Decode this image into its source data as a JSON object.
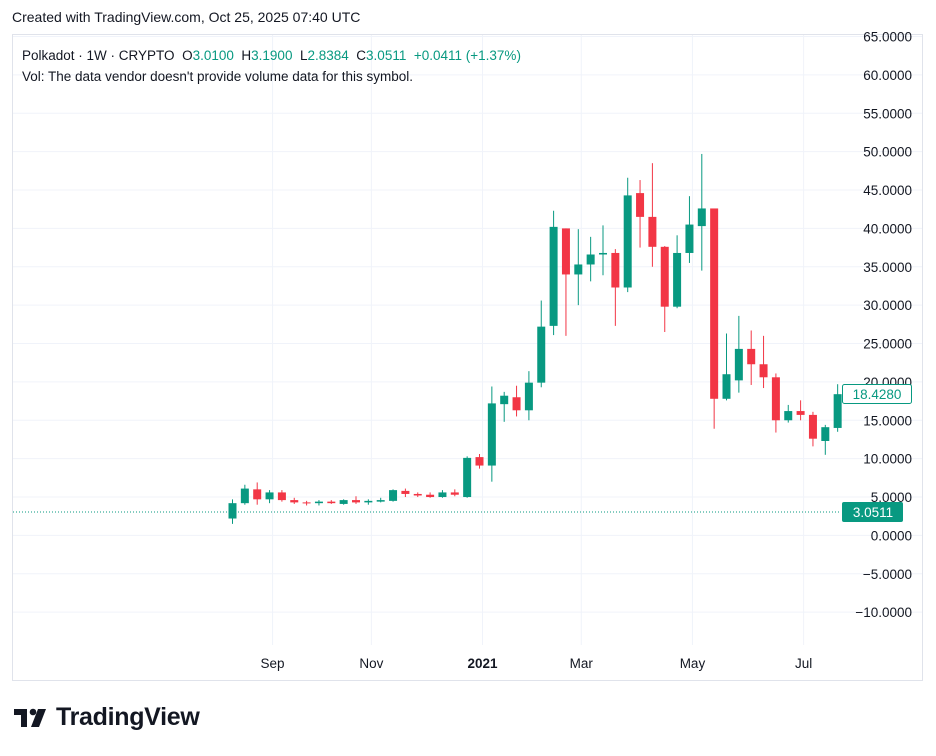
{
  "header": {
    "text": "Created with TradingView.com, Oct 25, 2025 07:40 UTC"
  },
  "legend": {
    "symbol": "Polkadot · 1W · CRYPTO",
    "o_label": "O",
    "o_value": "3.0100",
    "h_label": "H",
    "h_value": "3.1900",
    "l_label": "L",
    "l_value": "2.8384",
    "c_label": "C",
    "c_value": "3.0511",
    "change": "+0.0411 (+1.37%)",
    "volume_note": "Vol: The data vendor doesn't provide volume data for this symbol."
  },
  "logo": {
    "text": "TradingView"
  },
  "colors": {
    "up": "#089981",
    "down": "#f23645",
    "grid": "#f0f3fa",
    "text": "#131722"
  },
  "chart_data": {
    "type": "candlestick",
    "title": "Polkadot · 1W · CRYPTO",
    "ylim": [
      -13.5,
      65
    ],
    "y_ticks": [
      "65.0000",
      "60.0000",
      "55.0000",
      "50.0000",
      "45.0000",
      "40.0000",
      "35.0000",
      "30.0000",
      "25.0000",
      "20.0000",
      "15.0000",
      "10.0000",
      "5.0000",
      "0.0000",
      "−5.0000",
      "−10.0000"
    ],
    "y_tick_values": [
      65,
      60,
      55,
      50,
      45,
      40,
      35,
      30,
      25,
      20,
      15,
      10,
      5,
      0,
      -5,
      -10
    ],
    "x_labels": [
      {
        "label": "Sep",
        "index": 3,
        "bold": false
      },
      {
        "label": "Nov",
        "index": 11,
        "bold": false
      },
      {
        "label": "2021",
        "index": 20,
        "bold": true
      },
      {
        "label": "Mar",
        "index": 28,
        "bold": false
      },
      {
        "label": "May",
        "index": 37,
        "bold": false
      },
      {
        "label": "Jul",
        "index": 46,
        "bold": false
      }
    ],
    "price_labels": [
      {
        "value": 18.428,
        "text": "18.4280",
        "style": "outline"
      },
      {
        "value": 3.0511,
        "text": "3.0511",
        "style": "filled"
      }
    ],
    "current_price_line": 3.0511,
    "candles": [
      {
        "o": 2.2,
        "h": 4.7,
        "l": 1.5,
        "c": 4.2
      },
      {
        "o": 4.2,
        "h": 6.6,
        "l": 4.0,
        "c": 6.1
      },
      {
        "o": 6.0,
        "h": 6.9,
        "l": 4.0,
        "c": 4.7
      },
      {
        "o": 4.7,
        "h": 5.9,
        "l": 4.2,
        "c": 5.6
      },
      {
        "o": 5.6,
        "h": 5.9,
        "l": 4.4,
        "c": 4.6
      },
      {
        "o": 4.6,
        "h": 4.9,
        "l": 4.1,
        "c": 4.3
      },
      {
        "o": 4.3,
        "h": 4.5,
        "l": 3.9,
        "c": 4.2
      },
      {
        "o": 4.2,
        "h": 4.6,
        "l": 3.9,
        "c": 4.4
      },
      {
        "o": 4.4,
        "h": 4.6,
        "l": 4.1,
        "c": 4.2
      },
      {
        "o": 4.1,
        "h": 4.7,
        "l": 4.0,
        "c": 4.6
      },
      {
        "o": 4.6,
        "h": 5.1,
        "l": 4.1,
        "c": 4.3
      },
      {
        "o": 4.3,
        "h": 4.7,
        "l": 4.0,
        "c": 4.5
      },
      {
        "o": 4.4,
        "h": 4.9,
        "l": 4.3,
        "c": 4.6
      },
      {
        "o": 4.5,
        "h": 6.0,
        "l": 4.4,
        "c": 5.9
      },
      {
        "o": 5.8,
        "h": 6.1,
        "l": 5.0,
        "c": 5.4
      },
      {
        "o": 5.4,
        "h": 5.6,
        "l": 5.0,
        "c": 5.2
      },
      {
        "o": 5.3,
        "h": 5.6,
        "l": 4.9,
        "c": 5.0
      },
      {
        "o": 5.0,
        "h": 5.9,
        "l": 4.9,
        "c": 5.6
      },
      {
        "o": 5.6,
        "h": 6.0,
        "l": 5.1,
        "c": 5.3
      },
      {
        "o": 5.0,
        "h": 10.3,
        "l": 4.9,
        "c": 10.1
      },
      {
        "o": 10.2,
        "h": 10.6,
        "l": 8.7,
        "c": 9.1
      },
      {
        "o": 9.1,
        "h": 19.4,
        "l": 7.0,
        "c": 17.2
      },
      {
        "o": 17.1,
        "h": 18.7,
        "l": 14.8,
        "c": 18.2
      },
      {
        "o": 18.0,
        "h": 19.5,
        "l": 15.5,
        "c": 16.3
      },
      {
        "o": 16.3,
        "h": 21.4,
        "l": 15.0,
        "c": 19.9
      },
      {
        "o": 19.9,
        "h": 30.6,
        "l": 19.3,
        "c": 27.2
      },
      {
        "o": 27.3,
        "h": 42.3,
        "l": 26.1,
        "c": 40.2
      },
      {
        "o": 40.0,
        "h": 40.0,
        "l": 26.0,
        "c": 34.0
      },
      {
        "o": 34.0,
        "h": 39.9,
        "l": 30.0,
        "c": 35.3
      },
      {
        "o": 35.3,
        "h": 38.9,
        "l": 33.1,
        "c": 36.6
      },
      {
        "o": 36.6,
        "h": 40.4,
        "l": 33.9,
        "c": 36.8
      },
      {
        "o": 36.8,
        "h": 37.3,
        "l": 27.3,
        "c": 32.3
      },
      {
        "o": 32.3,
        "h": 46.6,
        "l": 31.7,
        "c": 44.3
      },
      {
        "o": 44.6,
        "h": 46.3,
        "l": 37.5,
        "c": 41.5
      },
      {
        "o": 41.5,
        "h": 48.5,
        "l": 35.0,
        "c": 37.6
      },
      {
        "o": 37.6,
        "h": 37.7,
        "l": 26.5,
        "c": 29.8
      },
      {
        "o": 29.8,
        "h": 39.1,
        "l": 29.6,
        "c": 36.8
      },
      {
        "o": 36.8,
        "h": 44.2,
        "l": 35.5,
        "c": 40.5
      },
      {
        "o": 40.3,
        "h": 49.7,
        "l": 34.5,
        "c": 42.6
      },
      {
        "o": 42.6,
        "h": 42.6,
        "l": 13.9,
        "c": 17.8
      },
      {
        "o": 17.8,
        "h": 26.3,
        "l": 17.6,
        "c": 21.0
      },
      {
        "o": 20.2,
        "h": 28.6,
        "l": 18.6,
        "c": 24.3
      },
      {
        "o": 24.3,
        "h": 26.7,
        "l": 19.6,
        "c": 22.3
      },
      {
        "o": 22.3,
        "h": 26.0,
        "l": 19.2,
        "c": 20.6
      },
      {
        "o": 20.6,
        "h": 21.1,
        "l": 13.4,
        "c": 15.0
      },
      {
        "o": 15.0,
        "h": 17.0,
        "l": 14.7,
        "c": 16.2
      },
      {
        "o": 16.2,
        "h": 17.6,
        "l": 15.0,
        "c": 15.7
      },
      {
        "o": 15.7,
        "h": 16.1,
        "l": 11.6,
        "c": 12.6
      },
      {
        "o": 12.3,
        "h": 14.4,
        "l": 10.5,
        "c": 14.1
      },
      {
        "o": 14.0,
        "h": 19.7,
        "l": 13.5,
        "c": 18.4
      }
    ]
  }
}
